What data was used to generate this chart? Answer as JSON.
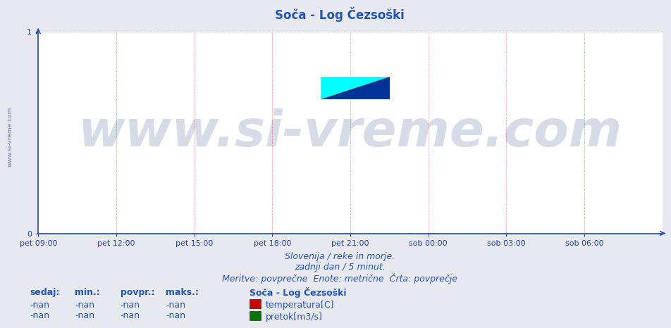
{
  "title": "Soča - Log Čezsoški",
  "title_color": "#2255bb",
  "title_fontsize": 12,
  "background_color": "#e8e8f0",
  "plot_background_color": "#ffffff",
  "grid_color": "#ffaaaa",
  "axis_color": "#2244bb",
  "yticks": [
    0,
    1
  ],
  "ylim": [
    0,
    1
  ],
  "xlim_start": 0,
  "xlim_end": 288,
  "xtick_labels": [
    "pet 09:00",
    "pet 12:00",
    "pet 15:00",
    "pet 18:00",
    "pet 21:00",
    "sob 00:00",
    "sob 03:00",
    "sob 06:00"
  ],
  "xtick_positions": [
    0,
    36,
    72,
    108,
    144,
    180,
    216,
    252
  ],
  "watermark_text": "www.si-vreme.com",
  "watermark_color": "#1a3a7a",
  "watermark_alpha": 0.18,
  "watermark_fontsize": 52,
  "side_text": "www.si-vreme.com",
  "side_text_color": "#2244bb",
  "side_text_fontsize": 6.5,
  "subtitle_line1": "Slovenija / reke in morje.",
  "subtitle_line2": "zadnji dan / 5 minut.",
  "subtitle_line3": "Meritve: povprečne  Enote: metrične  Črta: povprečje",
  "subtitle_color": "#2255bb",
  "subtitle_fontsize": 9,
  "legend_title": "Soča - Log Čezsoški",
  "legend_title_color": "#2255bb",
  "legend_title_fontsize": 9,
  "legend_items": [
    {
      "label": "temperatura[C]",
      "color": "#cc0000"
    },
    {
      "label": "pretok[m3/s]",
      "color": "#007700"
    }
  ],
  "legend_color": "#2255bb",
  "legend_fontsize": 9,
  "stats_headers": [
    "sedaj:",
    "min.:",
    "povpr.:",
    "maks.:"
  ],
  "stats_values": [
    "-nan",
    "-nan",
    "-nan",
    "-nan"
  ],
  "stats_color": "#2255bb",
  "stats_fontsize": 9,
  "logo_yellow_color": "#ffff00",
  "logo_cyan_color": "#00ffff",
  "logo_blue_color": "#003399"
}
